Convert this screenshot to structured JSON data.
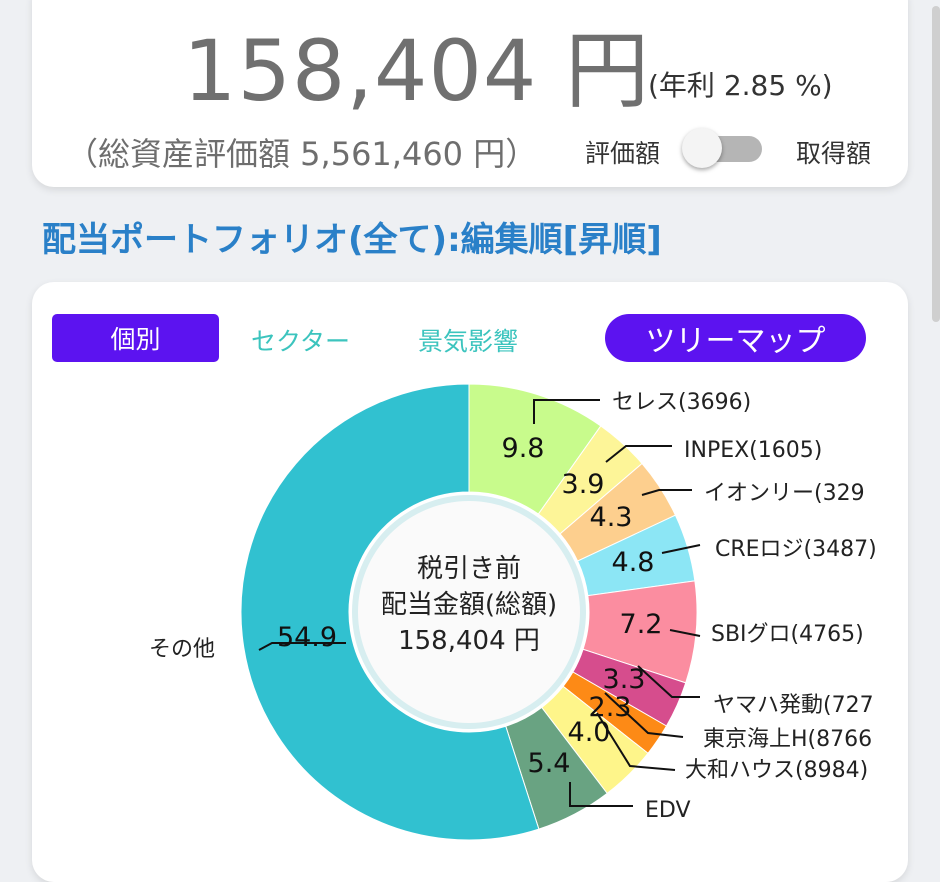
{
  "summary": {
    "dividend_amount": "158,404 円",
    "annual_yield": "(年利 2.85 %)",
    "total_assets": "（総資産評価額 5,561,460 円）",
    "toggle_left_label": "評価額",
    "toggle_right_label": "取得額",
    "toggle_on": false
  },
  "section_title": "配当ポートフォリオ(全て):編集順[昇順]",
  "tabs": {
    "individual": "個別",
    "sector": "セクター",
    "economy": "景気影響",
    "treemap": "ツリーマップ"
  },
  "chart_data": {
    "type": "pie",
    "donut": true,
    "center_text": [
      "税引き前",
      "配当金額(総額)",
      "158,404 円"
    ],
    "slices": [
      {
        "label": "セレス(3696)",
        "value": 9.8,
        "color": "#c8fb8c"
      },
      {
        "label": "INPEX(1605)",
        "value": 3.9,
        "color": "#fdf598"
      },
      {
        "label": "イオンリー(329",
        "value": 4.3,
        "color": "#fdcf8e"
      },
      {
        "label": "CREロジ(3487)",
        "value": 4.8,
        "color": "#8ce6f5"
      },
      {
        "label": "SBIグロ(4765)",
        "value": 7.2,
        "color": "#fb8da0"
      },
      {
        "label": "ヤマハ発動(727",
        "value": 3.3,
        "color": "#d64d8d"
      },
      {
        "label": "東京海上H(8766",
        "value": 2.3,
        "color": "#fd8a16"
      },
      {
        "label": "大和ハウス(8984)",
        "value": 4.0,
        "color": "#fef58a"
      },
      {
        "label": "EDV",
        "value": 5.4,
        "color": "#69a382"
      },
      {
        "label": "その他",
        "value": 54.9,
        "color": "#31c1d0"
      }
    ]
  }
}
